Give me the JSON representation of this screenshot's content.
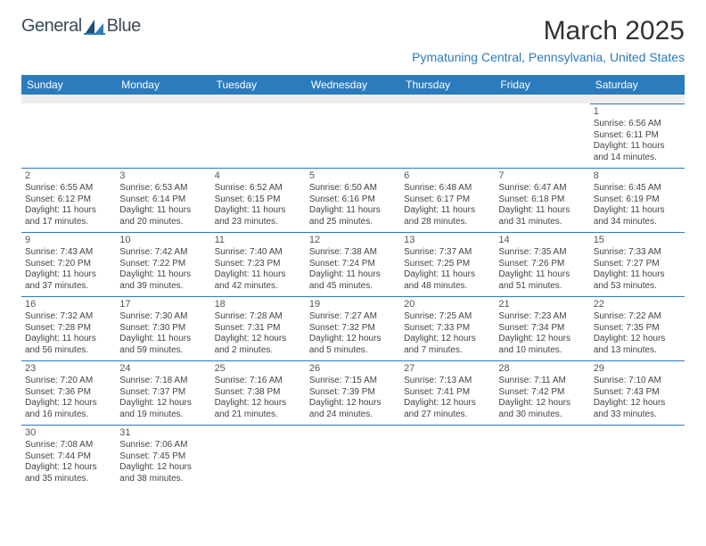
{
  "brand": {
    "name": "General",
    "suffix": "Blue",
    "accent": "#2b7bbd",
    "textColor": "#3b4a5a"
  },
  "title": "March 2025",
  "location": "Pymatuning Central, Pennsylvania, United States",
  "dayHeaders": [
    "Sunday",
    "Monday",
    "Tuesday",
    "Wednesday",
    "Thursday",
    "Friday",
    "Saturday"
  ],
  "colors": {
    "headerBg": "#2b7bbd",
    "headerText": "#ffffff",
    "cellBorder": "#2b7bbd",
    "spacerBg": "#eeeeee",
    "bodyText": "#444444"
  },
  "typography": {
    "titleSize": 30,
    "locationSize": 14,
    "headerSize": 12,
    "cellSize": 10,
    "dayNumSize": 11
  },
  "weeks": [
    [
      null,
      null,
      null,
      null,
      null,
      null,
      {
        "n": "1",
        "sunrise": "Sunrise: 6:56 AM",
        "sunset": "Sunset: 6:11 PM",
        "daylight1": "Daylight: 11 hours",
        "daylight2": "and 14 minutes."
      }
    ],
    [
      {
        "n": "2",
        "sunrise": "Sunrise: 6:55 AM",
        "sunset": "Sunset: 6:12 PM",
        "daylight1": "Daylight: 11 hours",
        "daylight2": "and 17 minutes."
      },
      {
        "n": "3",
        "sunrise": "Sunrise: 6:53 AM",
        "sunset": "Sunset: 6:14 PM",
        "daylight1": "Daylight: 11 hours",
        "daylight2": "and 20 minutes."
      },
      {
        "n": "4",
        "sunrise": "Sunrise: 6:52 AM",
        "sunset": "Sunset: 6:15 PM",
        "daylight1": "Daylight: 11 hours",
        "daylight2": "and 23 minutes."
      },
      {
        "n": "5",
        "sunrise": "Sunrise: 6:50 AM",
        "sunset": "Sunset: 6:16 PM",
        "daylight1": "Daylight: 11 hours",
        "daylight2": "and 25 minutes."
      },
      {
        "n": "6",
        "sunrise": "Sunrise: 6:48 AM",
        "sunset": "Sunset: 6:17 PM",
        "daylight1": "Daylight: 11 hours",
        "daylight2": "and 28 minutes."
      },
      {
        "n": "7",
        "sunrise": "Sunrise: 6:47 AM",
        "sunset": "Sunset: 6:18 PM",
        "daylight1": "Daylight: 11 hours",
        "daylight2": "and 31 minutes."
      },
      {
        "n": "8",
        "sunrise": "Sunrise: 6:45 AM",
        "sunset": "Sunset: 6:19 PM",
        "daylight1": "Daylight: 11 hours",
        "daylight2": "and 34 minutes."
      }
    ],
    [
      {
        "n": "9",
        "sunrise": "Sunrise: 7:43 AM",
        "sunset": "Sunset: 7:20 PM",
        "daylight1": "Daylight: 11 hours",
        "daylight2": "and 37 minutes."
      },
      {
        "n": "10",
        "sunrise": "Sunrise: 7:42 AM",
        "sunset": "Sunset: 7:22 PM",
        "daylight1": "Daylight: 11 hours",
        "daylight2": "and 39 minutes."
      },
      {
        "n": "11",
        "sunrise": "Sunrise: 7:40 AM",
        "sunset": "Sunset: 7:23 PM",
        "daylight1": "Daylight: 11 hours",
        "daylight2": "and 42 minutes."
      },
      {
        "n": "12",
        "sunrise": "Sunrise: 7:38 AM",
        "sunset": "Sunset: 7:24 PM",
        "daylight1": "Daylight: 11 hours",
        "daylight2": "and 45 minutes."
      },
      {
        "n": "13",
        "sunrise": "Sunrise: 7:37 AM",
        "sunset": "Sunset: 7:25 PM",
        "daylight1": "Daylight: 11 hours",
        "daylight2": "and 48 minutes."
      },
      {
        "n": "14",
        "sunrise": "Sunrise: 7:35 AM",
        "sunset": "Sunset: 7:26 PM",
        "daylight1": "Daylight: 11 hours",
        "daylight2": "and 51 minutes."
      },
      {
        "n": "15",
        "sunrise": "Sunrise: 7:33 AM",
        "sunset": "Sunset: 7:27 PM",
        "daylight1": "Daylight: 11 hours",
        "daylight2": "and 53 minutes."
      }
    ],
    [
      {
        "n": "16",
        "sunrise": "Sunrise: 7:32 AM",
        "sunset": "Sunset: 7:28 PM",
        "daylight1": "Daylight: 11 hours",
        "daylight2": "and 56 minutes."
      },
      {
        "n": "17",
        "sunrise": "Sunrise: 7:30 AM",
        "sunset": "Sunset: 7:30 PM",
        "daylight1": "Daylight: 11 hours",
        "daylight2": "and 59 minutes."
      },
      {
        "n": "18",
        "sunrise": "Sunrise: 7:28 AM",
        "sunset": "Sunset: 7:31 PM",
        "daylight1": "Daylight: 12 hours",
        "daylight2": "and 2 minutes."
      },
      {
        "n": "19",
        "sunrise": "Sunrise: 7:27 AM",
        "sunset": "Sunset: 7:32 PM",
        "daylight1": "Daylight: 12 hours",
        "daylight2": "and 5 minutes."
      },
      {
        "n": "20",
        "sunrise": "Sunrise: 7:25 AM",
        "sunset": "Sunset: 7:33 PM",
        "daylight1": "Daylight: 12 hours",
        "daylight2": "and 7 minutes."
      },
      {
        "n": "21",
        "sunrise": "Sunrise: 7:23 AM",
        "sunset": "Sunset: 7:34 PM",
        "daylight1": "Daylight: 12 hours",
        "daylight2": "and 10 minutes."
      },
      {
        "n": "22",
        "sunrise": "Sunrise: 7:22 AM",
        "sunset": "Sunset: 7:35 PM",
        "daylight1": "Daylight: 12 hours",
        "daylight2": "and 13 minutes."
      }
    ],
    [
      {
        "n": "23",
        "sunrise": "Sunrise: 7:20 AM",
        "sunset": "Sunset: 7:36 PM",
        "daylight1": "Daylight: 12 hours",
        "daylight2": "and 16 minutes."
      },
      {
        "n": "24",
        "sunrise": "Sunrise: 7:18 AM",
        "sunset": "Sunset: 7:37 PM",
        "daylight1": "Daylight: 12 hours",
        "daylight2": "and 19 minutes."
      },
      {
        "n": "25",
        "sunrise": "Sunrise: 7:16 AM",
        "sunset": "Sunset: 7:38 PM",
        "daylight1": "Daylight: 12 hours",
        "daylight2": "and 21 minutes."
      },
      {
        "n": "26",
        "sunrise": "Sunrise: 7:15 AM",
        "sunset": "Sunset: 7:39 PM",
        "daylight1": "Daylight: 12 hours",
        "daylight2": "and 24 minutes."
      },
      {
        "n": "27",
        "sunrise": "Sunrise: 7:13 AM",
        "sunset": "Sunset: 7:41 PM",
        "daylight1": "Daylight: 12 hours",
        "daylight2": "and 27 minutes."
      },
      {
        "n": "28",
        "sunrise": "Sunrise: 7:11 AM",
        "sunset": "Sunset: 7:42 PM",
        "daylight1": "Daylight: 12 hours",
        "daylight2": "and 30 minutes."
      },
      {
        "n": "29",
        "sunrise": "Sunrise: 7:10 AM",
        "sunset": "Sunset: 7:43 PM",
        "daylight1": "Daylight: 12 hours",
        "daylight2": "and 33 minutes."
      }
    ],
    [
      {
        "n": "30",
        "sunrise": "Sunrise: 7:08 AM",
        "sunset": "Sunset: 7:44 PM",
        "daylight1": "Daylight: 12 hours",
        "daylight2": "and 35 minutes."
      },
      {
        "n": "31",
        "sunrise": "Sunrise: 7:06 AM",
        "sunset": "Sunset: 7:45 PM",
        "daylight1": "Daylight: 12 hours",
        "daylight2": "and 38 minutes."
      },
      null,
      null,
      null,
      null,
      null
    ]
  ]
}
